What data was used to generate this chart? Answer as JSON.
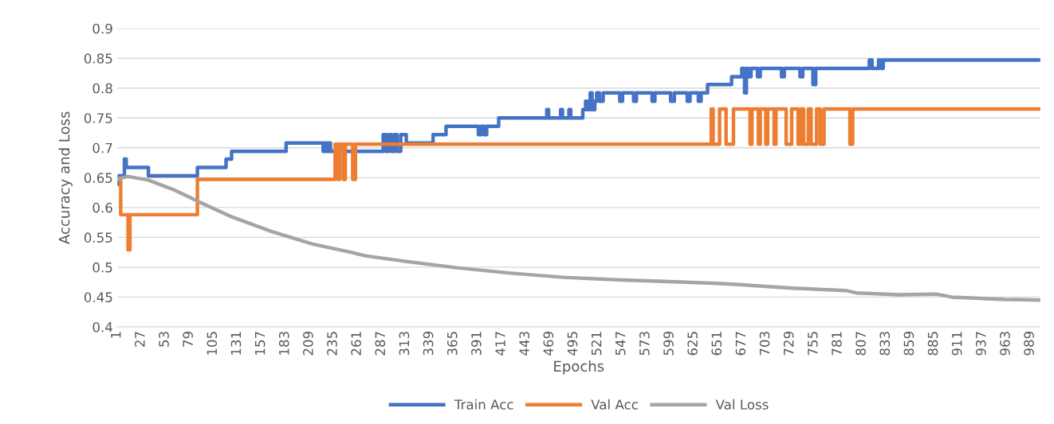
{
  "chart_data": {
    "type": "line",
    "xlabel": "Epochs",
    "ylabel": "Accuracy and Loss",
    "xlim": [
      1,
      1000
    ],
    "xticks": [
      1,
      27,
      53,
      79,
      105,
      131,
      157,
      183,
      209,
      235,
      261,
      287,
      313,
      339,
      365,
      391,
      417,
      443,
      469,
      495,
      521,
      547,
      573,
      599,
      625,
      651,
      677,
      703,
      729,
      755,
      781,
      807,
      833,
      859,
      885,
      911,
      937,
      963,
      989
    ],
    "ylim": [
      0.4,
      0.9
    ],
    "yticks": [
      0.4,
      0.45,
      0.5,
      0.55,
      0.6,
      0.65,
      0.7,
      0.75,
      0.8,
      0.85,
      0.9
    ],
    "grid": "y",
    "legend": "bottom",
    "series": [
      {
        "name": "Train Acc",
        "type": "step",
        "color": "#4472c4",
        "x": [
          1,
          3,
          9,
          11,
          35,
          88,
          119,
          125,
          184,
          224,
          226,
          228,
          230,
          232,
          289,
          292,
          295,
          298,
          301,
          304,
          308,
          314,
          343,
          357,
          392,
          395,
          398,
          401,
          414,
          466,
          468,
          481,
          483,
          490,
          492,
          505,
          508,
          510,
          513,
          515,
          518,
          520,
          523,
          527,
          545,
          548,
          560,
          563,
          580,
          583,
          600,
          604,
          618,
          621,
          630,
          633,
          640,
          666,
          677,
          680,
          682,
          684,
          687,
          694,
          697,
          720,
          723,
          740,
          743,
          754,
          757,
          815,
          818,
          825,
          828,
          830,
          1000
        ],
        "values": [
          0.639,
          0.653,
          0.681,
          0.667,
          0.653,
          0.667,
          0.681,
          0.694,
          0.708,
          0.694,
          0.708,
          0.694,
          0.708,
          0.694,
          0.722,
          0.694,
          0.722,
          0.694,
          0.722,
          0.694,
          0.722,
          0.708,
          0.722,
          0.736,
          0.722,
          0.736,
          0.722,
          0.736,
          0.75,
          0.764,
          0.75,
          0.764,
          0.75,
          0.764,
          0.75,
          0.764,
          0.778,
          0.764,
          0.792,
          0.764,
          0.778,
          0.792,
          0.778,
          0.792,
          0.778,
          0.792,
          0.778,
          0.792,
          0.778,
          0.792,
          0.778,
          0.792,
          0.778,
          0.792,
          0.778,
          0.792,
          0.806,
          0.819,
          0.833,
          0.792,
          0.833,
          0.819,
          0.833,
          0.819,
          0.833,
          0.819,
          0.833,
          0.819,
          0.833,
          0.806,
          0.833,
          0.847,
          0.833,
          0.847,
          0.833,
          0.847,
          0.847
        ]
      },
      {
        "name": "Val Acc",
        "type": "step",
        "color": "#ed7d31",
        "x": [
          1,
          5,
          13,
          15,
          88,
          237,
          240,
          242,
          246,
          248,
          256,
          259,
          644,
          646,
          653,
          660,
          668,
          686,
          688,
          695,
          697,
          703,
          705,
          712,
          714,
          725,
          731,
          738,
          741,
          744,
          749,
          752,
          758,
          762,
          766,
          794,
          797,
          1000
        ],
        "values": [
          0.647,
          0.588,
          0.529,
          0.588,
          0.647,
          0.706,
          0.647,
          0.706,
          0.647,
          0.706,
          0.647,
          0.706,
          0.765,
          0.706,
          0.765,
          0.706,
          0.765,
          0.706,
          0.765,
          0.706,
          0.765,
          0.706,
          0.765,
          0.706,
          0.765,
          0.706,
          0.765,
          0.706,
          0.765,
          0.706,
          0.765,
          0.706,
          0.765,
          0.706,
          0.765,
          0.706,
          0.765,
          0.765
        ]
      },
      {
        "name": "Val Loss",
        "color": "#a5a5a5",
        "x": [
          1,
          13,
          35,
          62,
          89,
          124,
          168,
          212,
          254,
          270,
          312,
          369,
          427,
          484,
          542,
          599,
          651,
          674,
          732,
          789,
          801,
          847,
          887,
          904,
          962,
          1000
        ],
        "values": [
          0.648,
          0.652,
          0.646,
          0.63,
          0.61,
          0.585,
          0.56,
          0.539,
          0.525,
          0.519,
          0.51,
          0.499,
          0.49,
          0.483,
          0.479,
          0.476,
          0.473,
          0.471,
          0.465,
          0.461,
          0.457,
          0.454,
          0.455,
          0.45,
          0.446,
          0.445
        ]
      }
    ]
  }
}
